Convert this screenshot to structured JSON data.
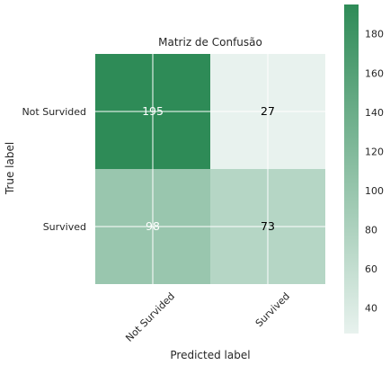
{
  "chart_data": {
    "type": "heatmap",
    "title": "Matriz de Confusão",
    "xlabel": "Predicted label",
    "ylabel": "True label",
    "x_categories": [
      "Not Survided",
      "Survived"
    ],
    "y_categories": [
      "Not Survided",
      "Survived"
    ],
    "matrix": [
      [
        195,
        27
      ],
      [
        98,
        73
      ]
    ],
    "colorbar": {
      "range": [
        27,
        195
      ],
      "ticks": [
        40,
        60,
        80,
        100,
        120,
        140,
        160,
        180
      ],
      "colors": [
        "#e8f2ee",
        "#2e8b57"
      ]
    },
    "cell_text_colors": [
      [
        "#ffffff",
        "#000000"
      ],
      [
        "#ffffff",
        "#000000"
      ]
    ],
    "grid": true,
    "x_tick_rotation_deg": 45
  }
}
